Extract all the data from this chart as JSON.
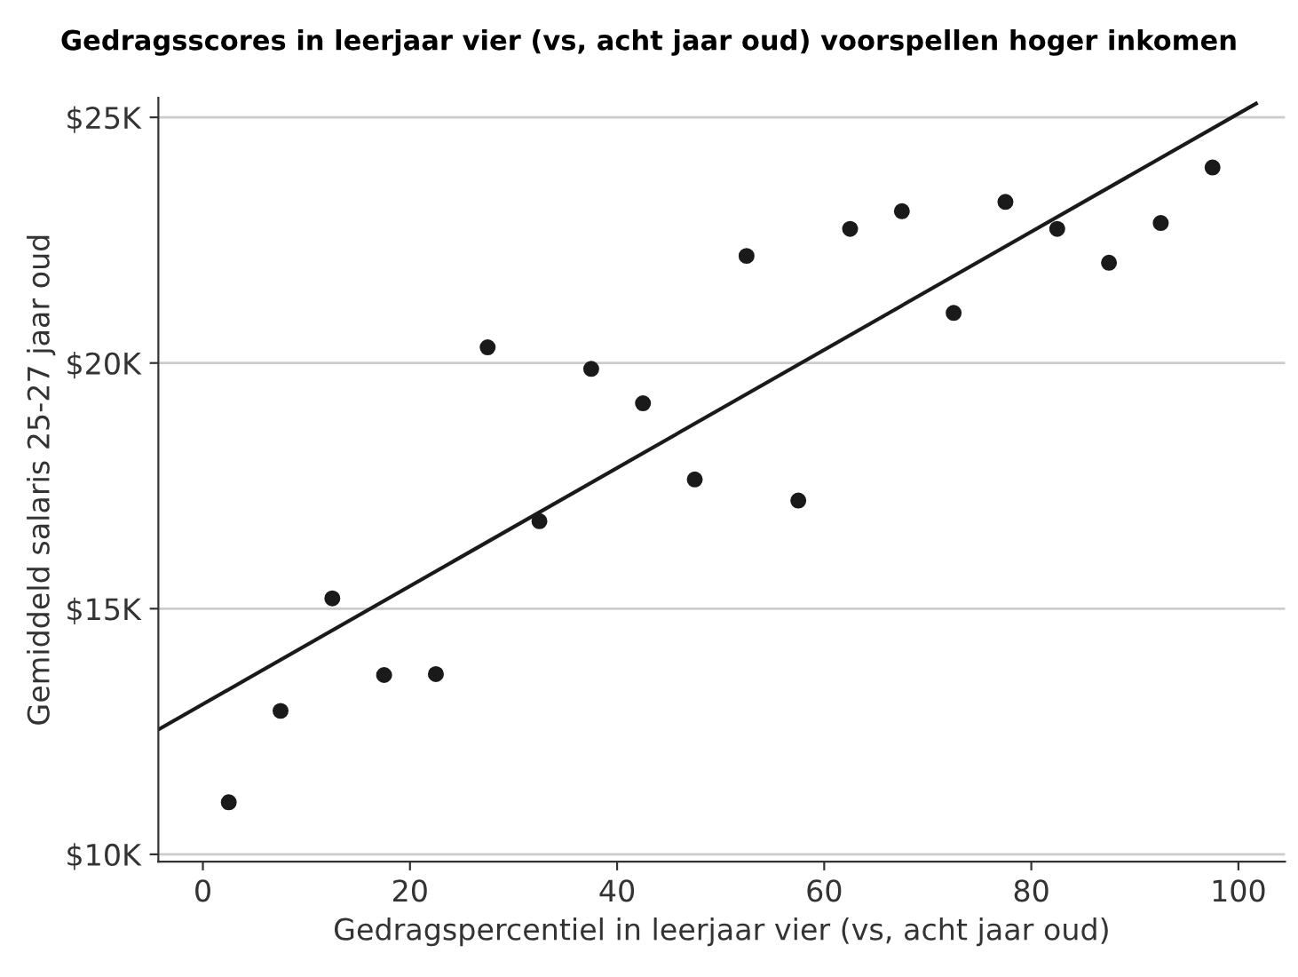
{
  "chart_data": {
    "type": "scatter",
    "title": "Gedragsscores in leerjaar vier (vs, acht jaar oud) voorspellen hoger inkomen",
    "xlabel": "Gedragspercentiel in leerjaar vier (vs, acht jaar oud)",
    "ylabel": "Gemiddeld salaris 25-27 jaar oud",
    "series": [
      {
        "color": "#1a1a1a",
        "marker": "circle",
        "x": [
          2.5,
          7.5,
          12.5,
          17.5,
          22.5,
          27.5,
          32.5,
          37.5,
          42.5,
          47.5,
          52.5,
          57.5,
          62.5,
          67.5,
          72.5,
          77.5,
          82.5,
          87.5,
          92.5,
          97.5
        ],
        "values": [
          11.06,
          12.92,
          15.21,
          13.65,
          13.67,
          20.32,
          16.78,
          19.88,
          19.18,
          17.63,
          22.18,
          17.2,
          22.73,
          23.09,
          21.02,
          23.28,
          22.73,
          22.04,
          22.85,
          23.98
        ]
      },
      {
        "type": "line",
        "color": "#1a1a1a",
        "marker": "none",
        "line_style": "solid",
        "x": [
          -4.3,
          101.7
        ],
        "values": [
          12.54,
          25.28
        ]
      }
    ],
    "xlim": [
      -4.3,
      104.5
    ],
    "ylim": [
      9.85,
      25.4
    ],
    "xticks": [
      0,
      20,
      40,
      60,
      80,
      100
    ],
    "yticks": [
      {
        "value": 10,
        "label": "$10K"
      },
      {
        "value": 15,
        "label": "$15K"
      },
      {
        "value": 20,
        "label": "$20K"
      },
      {
        "value": 25,
        "label": "$25K"
      }
    ],
    "grid": "y",
    "legend": false
  }
}
